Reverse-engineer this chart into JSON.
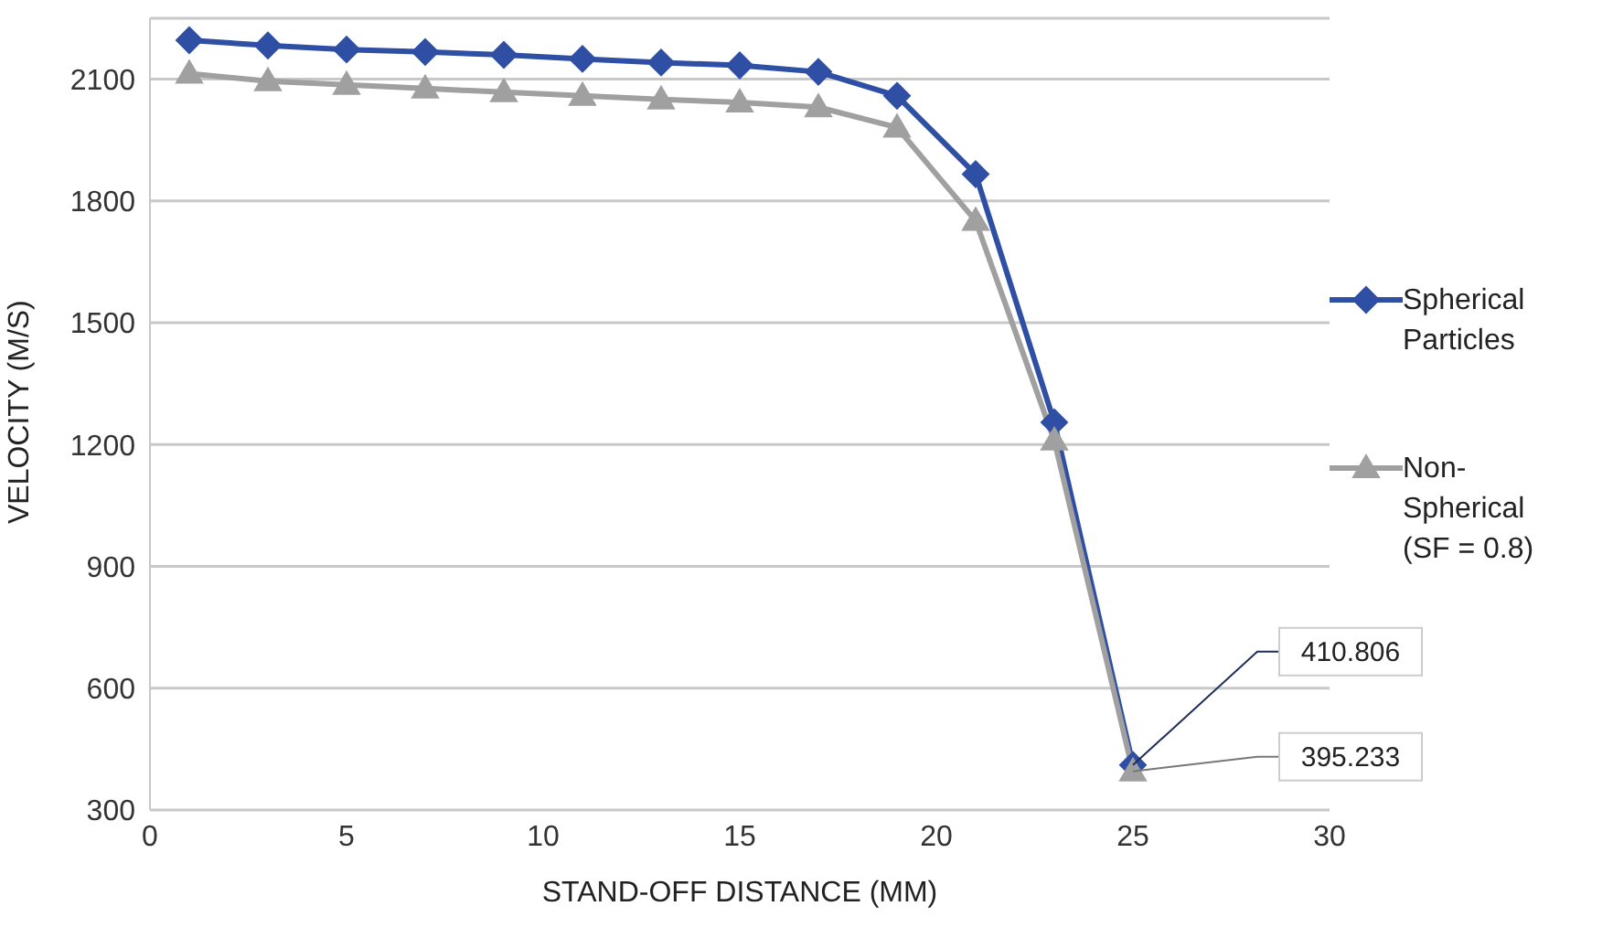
{
  "chart_data": {
    "type": "line",
    "xlabel": "STAND-OFF DISTANCE (MM)",
    "ylabel": "VELOCITY (M/S)",
    "x": [
      1,
      3,
      5,
      7,
      9,
      11,
      13,
      15,
      17,
      19,
      21,
      23,
      25
    ],
    "series": [
      {
        "name": "Spherical Particles",
        "color": "#2e4fa3",
        "marker": "diamond",
        "values": [
          2196,
          2183,
          2173,
          2167,
          2160,
          2150,
          2141,
          2134,
          2118,
          2059,
          1866,
          1255,
          410.806
        ],
        "value_labels": [
          null,
          null,
          null,
          null,
          null,
          null,
          null,
          null,
          null,
          null,
          null,
          null,
          "410.806"
        ]
      },
      {
        "name": "Non-Spherical (SF = 0.8)",
        "color": "#a0a0a0",
        "marker": "triangle",
        "values": [
          2114,
          2095,
          2086,
          2077,
          2068,
          2059,
          2050,
          2043,
          2031,
          1981,
          1751,
          1210,
          395.233
        ],
        "value_labels": [
          null,
          null,
          null,
          null,
          null,
          null,
          null,
          null,
          null,
          null,
          null,
          null,
          "395.233"
        ]
      }
    ],
    "xlim": [
      0,
      30
    ],
    "xticks": [
      0,
      5,
      10,
      15,
      20,
      25,
      30
    ],
    "ylim": [
      300,
      2250
    ],
    "yticks": [
      300,
      600,
      900,
      1200,
      1500,
      1800,
      2100
    ],
    "grid": "y",
    "legend": "right",
    "line_style": "solid"
  }
}
